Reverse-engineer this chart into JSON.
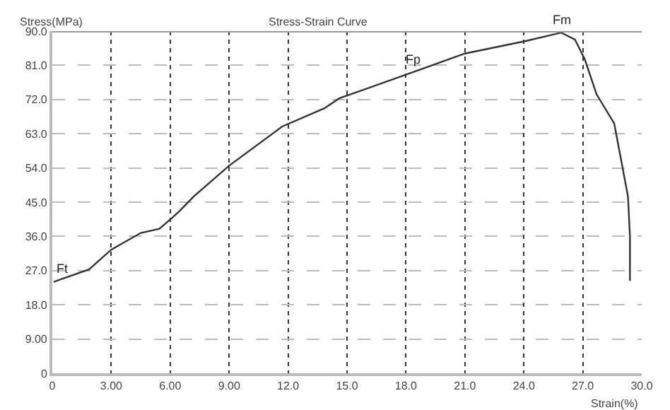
{
  "chart_data": {
    "type": "line",
    "title": "Stress-Strain Curve",
    "xlabel": "Strain(%)",
    "ylabel": "Stress(MPa)",
    "x": [
      0.07,
      0.43,
      1.87,
      3.0,
      4.5,
      5.45,
      6.1,
      6.5,
      7.2,
      9.0,
      11.7,
      13.85,
      14.6,
      18.4,
      21.0,
      24.1,
      25.9,
      26.6,
      27.1,
      27.7,
      28.6,
      28.9,
      29.3,
      29.4,
      29.4
    ],
    "series": [
      {
        "color": "#333333",
        "values": [
          24.0,
          24.7,
          27.3,
          32.5,
          36.9,
          38.0,
          40.9,
          42.8,
          46.5,
          54.6,
          64.9,
          69.7,
          72.3,
          79.3,
          84.1,
          87.4,
          89.6,
          87.8,
          82.6,
          73.4,
          65.7,
          57.5,
          46.5,
          36.1,
          24.3
        ]
      }
    ],
    "xlim": [
      0,
      30
    ],
    "ylim": [
      0,
      90
    ],
    "xticks": [
      0,
      {
        "value": 3,
        "label": "3.00"
      },
      {
        "value": 6,
        "label": "6.00"
      },
      {
        "value": 9,
        "label": "9.00"
      },
      {
        "value": 12,
        "label": "12.0"
      },
      {
        "value": 15,
        "label": "15.0"
      },
      {
        "value": 18,
        "label": "18.0"
      },
      {
        "value": 21,
        "label": "21.0"
      },
      {
        "value": 24,
        "label": "24.0"
      },
      {
        "value": 27,
        "label": "27.0"
      },
      {
        "value": 30,
        "label": "30.0"
      }
    ],
    "yticks": [
      0,
      {
        "value": 9,
        "label": "9.00"
      },
      {
        "value": 18,
        "label": "18.0"
      },
      {
        "value": 27,
        "label": "27.0"
      },
      {
        "value": 36,
        "label": "36.0"
      },
      {
        "value": 45,
        "label": "45.0"
      },
      {
        "value": 54,
        "label": "54.0"
      },
      {
        "value": 63,
        "label": "63.0"
      },
      {
        "value": 72,
        "label": "72.0"
      },
      {
        "value": 81,
        "label": "81.0"
      },
      {
        "value": 90,
        "label": "90.0"
      }
    ],
    "annotations": [
      {
        "text": "Ft",
        "x": 0.07,
        "y": 24.0
      },
      {
        "text": "Fp",
        "x": 18.4,
        "y": 79.3
      },
      {
        "text": "Fm",
        "x": 25.9,
        "y": 89.6
      }
    ],
    "grid": true,
    "marker": "none",
    "line_style": "solid"
  }
}
